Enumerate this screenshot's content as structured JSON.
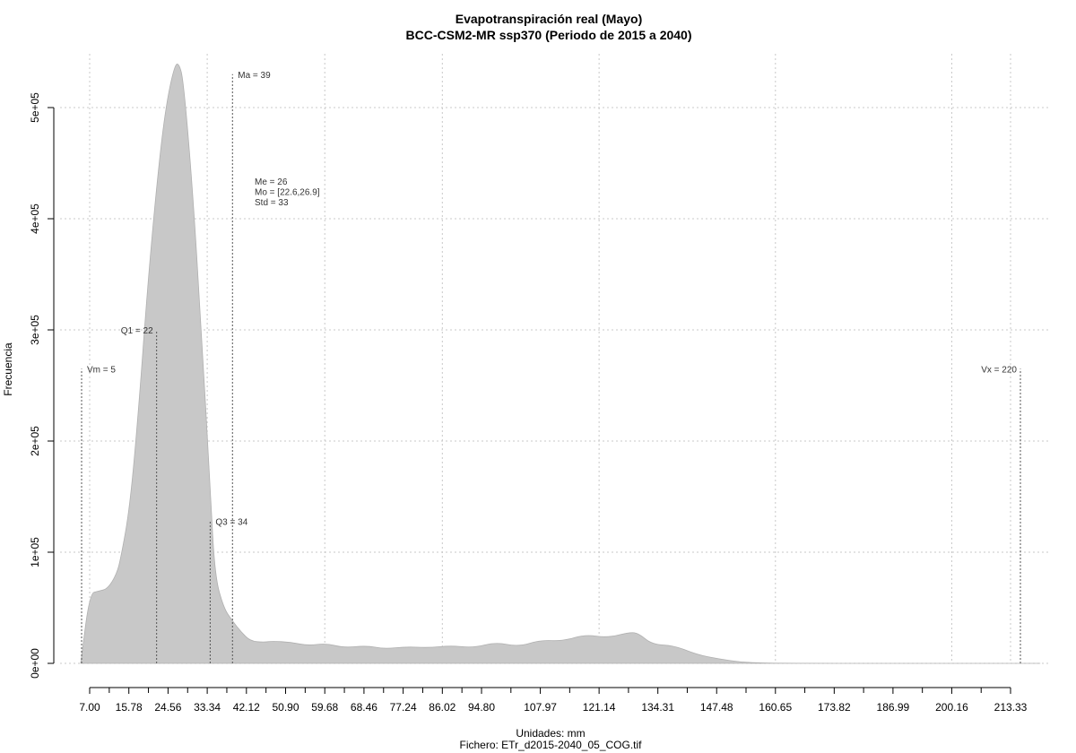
{
  "chart_data": {
    "type": "area",
    "title": "Evapotranspiración real (Mayo)",
    "subtitle": "BCC-CSM2-MR ssp370 (Periodo de 2015 a 2040)",
    "xlabel": "Unidades: mm",
    "ylabel": "Frecuencia",
    "footer": "Fichero: ETr_d2015-2040_05_COG.tif",
    "xlim": [
      0,
      224
    ],
    "ylim": [
      0,
      500000
    ],
    "x_ticks": [
      7.0,
      15.78,
      24.56,
      33.34,
      42.12,
      50.9,
      59.68,
      68.46,
      77.24,
      86.02,
      94.8,
      107.97,
      121.14,
      134.31,
      147.48,
      160.65,
      173.82,
      186.99,
      200.16,
      213.33
    ],
    "y_ticks": [
      0,
      100000,
      200000,
      300000,
      400000,
      500000
    ],
    "y_tick_labels": [
      "0e+00",
      "1e+05",
      "2e+05",
      "3e+05",
      "4e+05",
      "5e+05"
    ],
    "grid": true,
    "fill_color": "#c8c8c8",
    "x": [
      5,
      7,
      9,
      11,
      13,
      14,
      16,
      18,
      20,
      22,
      24,
      26,
      27,
      28,
      30,
      32,
      34,
      35,
      37,
      39,
      41,
      43,
      46,
      48,
      52,
      56,
      60,
      64,
      69,
      73,
      78,
      83,
      88,
      93,
      98,
      103,
      108,
      113,
      118,
      123,
      128,
      130,
      133,
      138,
      143,
      148,
      153,
      158,
      163,
      170,
      180,
      190,
      200,
      210,
      220
    ],
    "y": [
      0,
      63000,
      65000,
      67000,
      80000,
      95000,
      140000,
      230000,
      340000,
      430000,
      500000,
      538000,
      540000,
      525000,
      430000,
      300000,
      160000,
      80000,
      50000,
      38000,
      28000,
      20000,
      19000,
      20000,
      19000,
      16000,
      18000,
      14000,
      16000,
      13000,
      15000,
      14000,
      16000,
      14000,
      19000,
      15000,
      21000,
      20000,
      26000,
      23000,
      28000,
      27000,
      17000,
      16000,
      8000,
      4000,
      1000,
      300,
      100,
      0,
      0,
      0,
      0,
      0,
      0
    ],
    "annotations": [
      {
        "label": "Vm = 5",
        "x": 5,
        "y_top": 265000,
        "align": "right"
      },
      {
        "label": "Q1 = 22",
        "x": 22,
        "y_top": 300000,
        "align": "left"
      },
      {
        "label": "Q3 = 34",
        "x": 34,
        "y_top": 128000,
        "align": "right"
      },
      {
        "label": "Ma = 39",
        "x": 39,
        "y_top": 530000,
        "align": "right"
      },
      {
        "label": "Vx = 220",
        "x": 220,
        "y_top": 265000,
        "align": "left"
      }
    ],
    "stats": [
      "Me = 26",
      "Mo = [22.6,26.9]",
      "Std = 33"
    ]
  }
}
